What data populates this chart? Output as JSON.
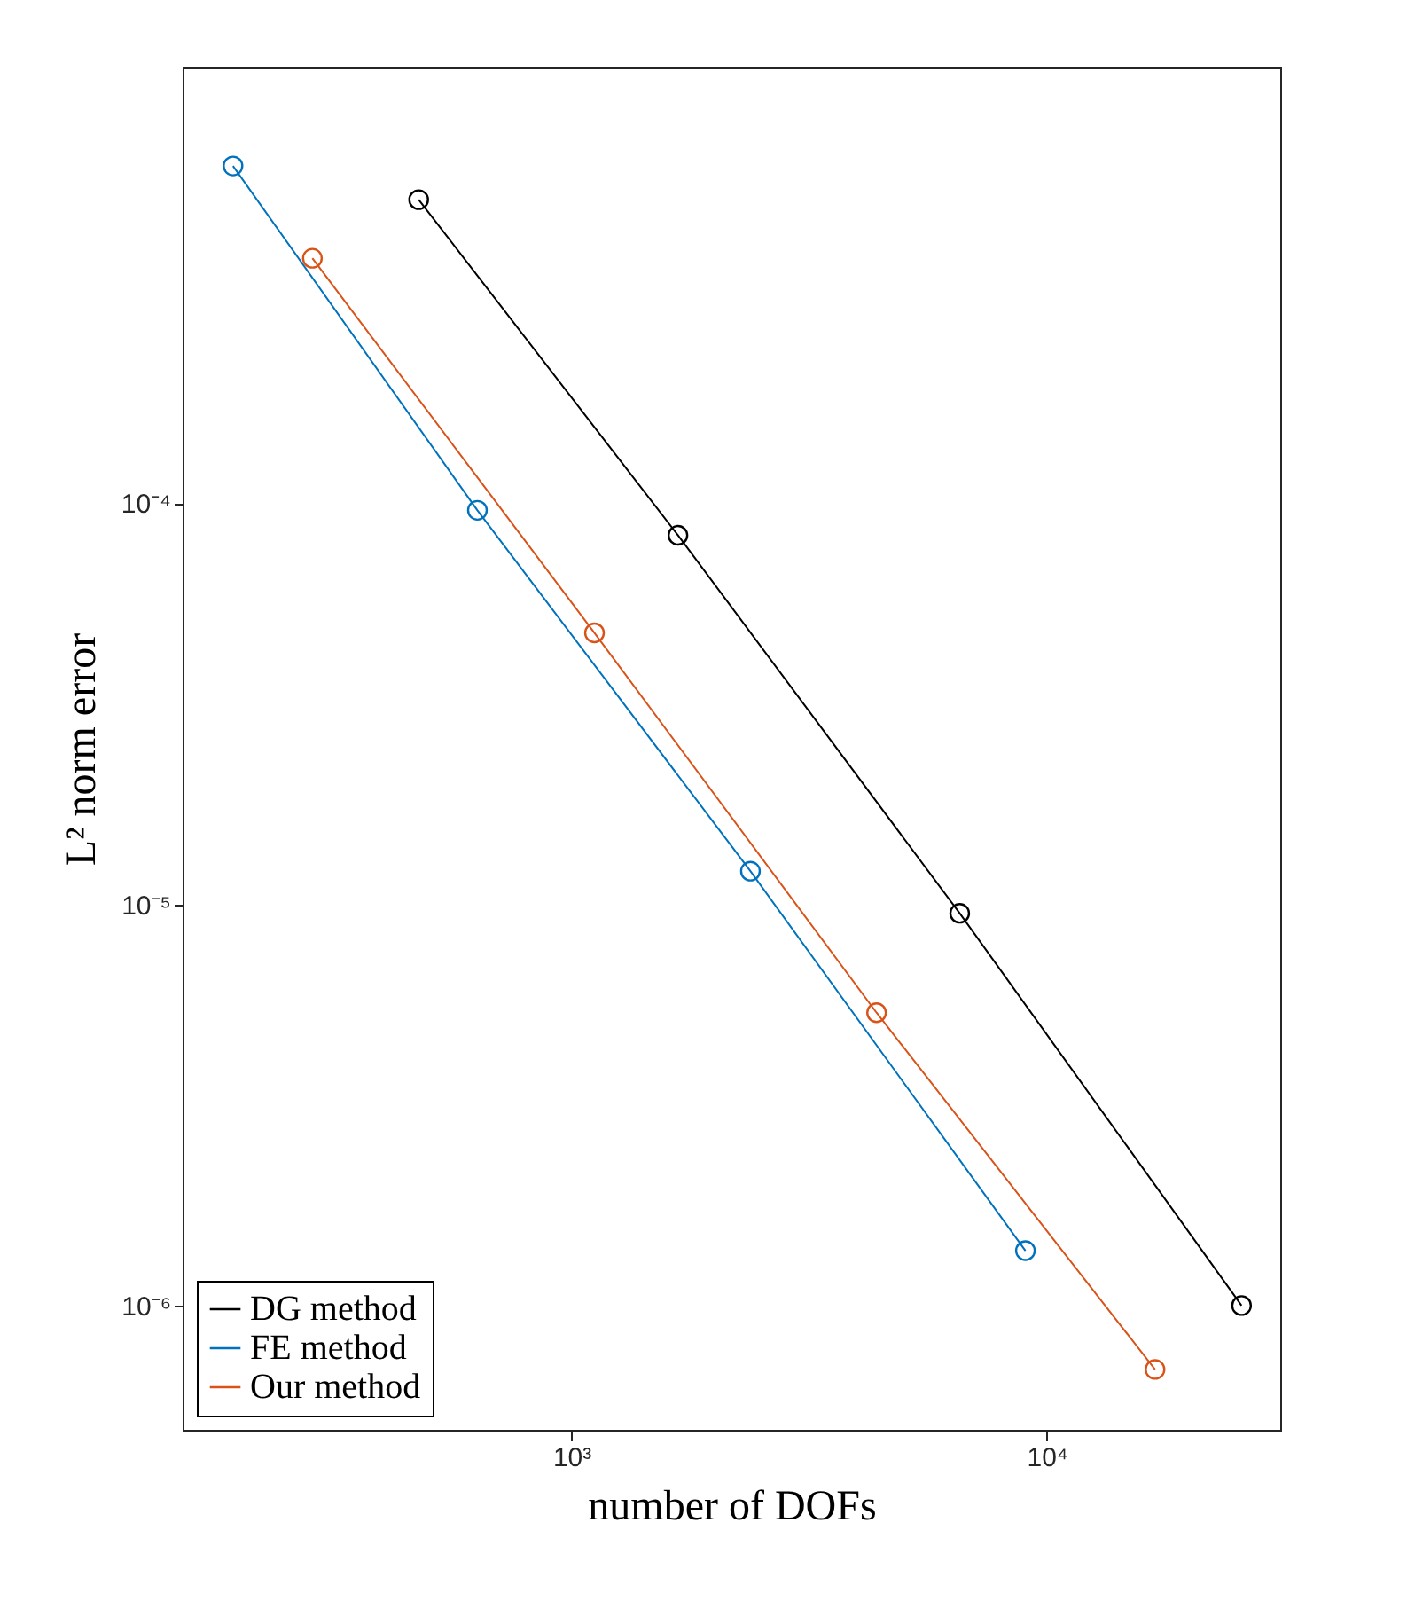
{
  "chart_data": {
    "type": "line",
    "xlabel": "number of DOFs",
    "ylabel": "L² norm error",
    "log": "xy",
    "grid": false,
    "legend": "bottom left",
    "marker": "circle",
    "line_style": "solid",
    "xlim": [
      152,
      31000
    ],
    "ylim": [
      4.9e-07,
      0.00122
    ],
    "xticks": [
      {
        "value": 1000,
        "label": "10³"
      },
      {
        "value": 10000,
        "label": "10⁴"
      }
    ],
    "yticks": [
      {
        "value": 1e-06,
        "label": "10⁻⁶"
      },
      {
        "value": 1e-05,
        "label": "10⁻⁵"
      },
      {
        "value": 0.0001,
        "label": "10⁻⁴"
      }
    ],
    "series": [
      {
        "name": "DG method",
        "color": "#000000",
        "x": [
          477,
          1675,
          6560,
          25700
        ],
        "values": [
          0.000571,
          8.32e-05,
          9.5e-06,
          1e-06
        ]
      },
      {
        "name": "FE method",
        "color": "#0072bd",
        "x": [
          194,
          634,
          2380,
          9020
        ],
        "values": [
          0.000693,
          9.6e-05,
          1.21e-05,
          1.37e-06
        ]
      },
      {
        "name": "Our method",
        "color": "#d95319",
        "x": [
          285,
          1118,
          4385,
          16900
        ],
        "values": [
          0.000408,
          4.75e-05,
          5.37e-06,
          6.93e-07
        ]
      }
    ]
  }
}
